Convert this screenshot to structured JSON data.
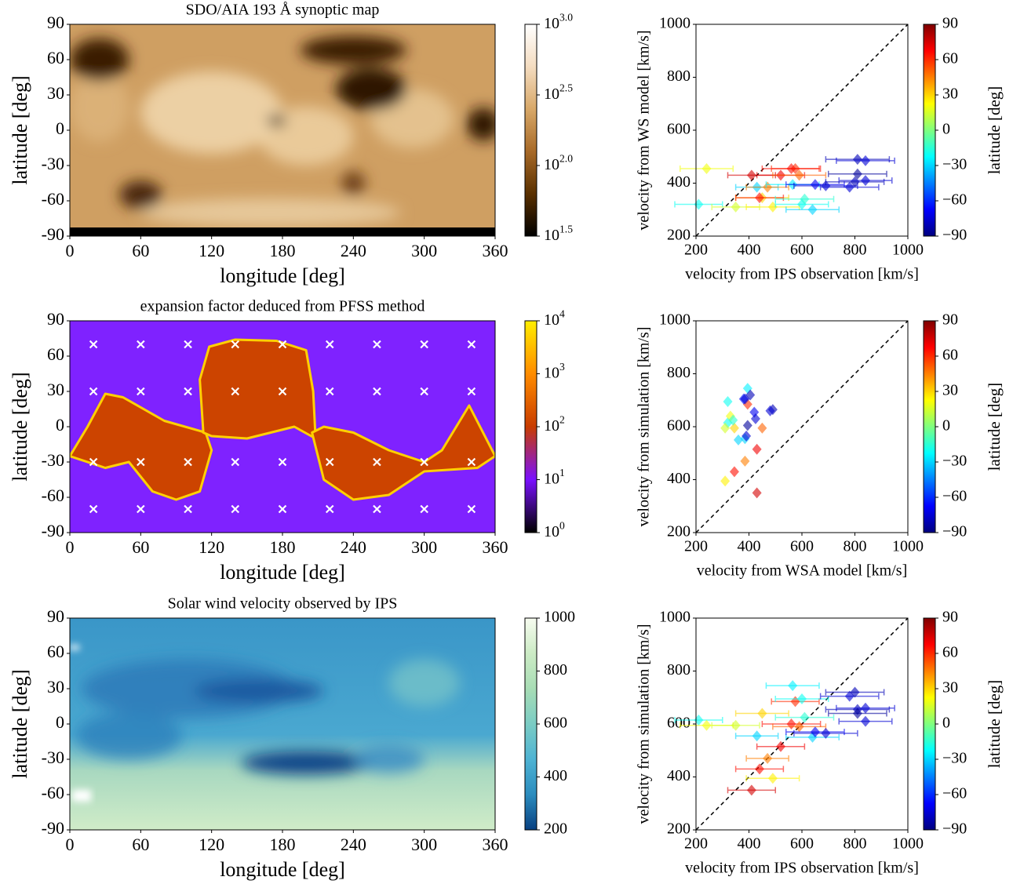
{
  "chart_data": [
    {
      "type": "heatmap",
      "title": "SDO/AIA 193 Å synoptic map",
      "xlabel": "longitude [deg]",
      "ylabel": "latitude [deg]",
      "xlim": [
        0,
        360
      ],
      "ylim": [
        -90,
        90
      ],
      "xticks": [
        0,
        60,
        120,
        180,
        240,
        300,
        360
      ],
      "yticks": [
        -90,
        -60,
        -30,
        0,
        30,
        60,
        90
      ],
      "colorbar": {
        "scale": "log",
        "lim": [
          1.5,
          3.0
        ],
        "ticks": [
          {
            "value": 1.5,
            "label": "10^1.5"
          },
          {
            "value": 2.0,
            "label": "10^2.0"
          },
          {
            "value": 2.5,
            "label": "10^2.5"
          },
          {
            "value": 3.0,
            "label": "10^3.0"
          }
        ],
        "colors": [
          "#000000",
          "#5a3000",
          "#a86a28",
          "#d8a868",
          "#f4dcc0",
          "#ffffff"
        ]
      }
    },
    {
      "type": "scatter",
      "xlabel": "velocity from IPS observation [km/s]",
      "ylabel": "velocity from WS model [km/s]",
      "xlim": [
        200,
        1000
      ],
      "ylim": [
        200,
        1000
      ],
      "xticks": [
        200,
        400,
        600,
        800,
        1000
      ],
      "yticks": [
        200,
        400,
        600,
        800,
        1000
      ],
      "diagonal": true,
      "x": [
        210,
        240,
        350,
        430,
        450,
        520,
        470,
        440,
        490,
        410,
        565,
        575,
        600,
        560,
        590,
        610,
        640,
        650,
        690,
        780,
        800,
        810,
        840,
        840,
        810
      ],
      "y": [
        320,
        455,
        310,
        385,
        345,
        430,
        385,
        345,
        310,
        430,
        395,
        455,
        320,
        455,
        430,
        340,
        300,
        395,
        390,
        385,
        405,
        490,
        485,
        410,
        435
      ],
      "xerr": [
        90,
        100,
        90,
        80,
        100,
        90,
        80,
        90,
        100,
        90,
        100,
        90,
        100,
        110,
        100,
        110,
        100,
        110,
        120,
        110,
        110,
        120,
        110,
        100,
        110
      ],
      "c": [
        -20,
        20,
        15,
        -30,
        30,
        70,
        45,
        65,
        25,
        75,
        -25,
        60,
        -20,
        65,
        50,
        -15,
        -30,
        -70,
        -75,
        -75,
        -80,
        -80,
        -75,
        -75,
        -85
      ],
      "colorbar": {
        "label": "latitude [deg]",
        "lim": [
          -90,
          90
        ],
        "ticks": [
          {
            "value": -90,
            "label": "−90"
          },
          {
            "value": -60,
            "label": "−60"
          },
          {
            "value": -30,
            "label": "−30"
          },
          0,
          30,
          60,
          90
        ],
        "colors": [
          "#00007f",
          "#0000ff",
          "#007fff",
          "#00ffff",
          "#7fff7f",
          "#ffff00",
          "#ff7f00",
          "#ff0000",
          "#7f0000"
        ]
      }
    },
    {
      "type": "heatmap",
      "title": "expansion factor deduced from PFSS method",
      "xlabel": "longitude [deg]",
      "ylabel": "latitude [deg]",
      "xlim": [
        0,
        360
      ],
      "ylim": [
        -90,
        90
      ],
      "xticks": [
        0,
        60,
        120,
        180,
        240,
        300,
        360
      ],
      "yticks": [
        -90,
        -60,
        -30,
        0,
        30,
        60,
        90
      ],
      "markers": {
        "color": "#ffffff",
        "x": [
          20,
          60,
          100,
          140,
          180,
          220,
          260,
          300,
          340,
          20,
          60,
          100,
          140,
          180,
          220,
          260,
          300,
          340,
          20,
          60,
          100,
          140,
          180,
          220,
          260,
          300,
          340,
          20,
          60,
          100,
          140,
          180,
          220,
          260,
          300,
          340
        ],
        "y": [
          70,
          70,
          70,
          70,
          70,
          70,
          70,
          70,
          70,
          30,
          30,
          30,
          30,
          30,
          30,
          30,
          30,
          30,
          -30,
          -30,
          -30,
          -30,
          -30,
          -30,
          -30,
          -30,
          -30,
          -70,
          -70,
          -70,
          -70,
          -70,
          -70,
          -70,
          -70,
          -70
        ]
      },
      "colorbar": {
        "scale": "log",
        "lim": [
          0,
          4
        ],
        "ticks": [
          {
            "value": 0,
            "label": "10^0"
          },
          {
            "value": 1,
            "label": "10^1"
          },
          {
            "value": 2,
            "label": "10^2"
          },
          {
            "value": 3,
            "label": "10^3"
          },
          {
            "value": 4,
            "label": "10^4"
          }
        ],
        "colors": [
          "#000000",
          "#7a10ff",
          "#c83c00",
          "#ff8c00",
          "#ffee00"
        ]
      }
    },
    {
      "type": "scatter",
      "xlabel": "velocity from WSA model [km/s]",
      "ylabel": "velocity from simulation [km/s]",
      "xlim": [
        200,
        1000
      ],
      "ylim": [
        200,
        1000
      ],
      "xticks": [
        200,
        400,
        600,
        800,
        1000
      ],
      "yticks": [
        200,
        400,
        600,
        800,
        1000
      ],
      "diagonal": true,
      "x": [
        320,
        330,
        310,
        385,
        345,
        430,
        385,
        345,
        310,
        430,
        395,
        395,
        320,
        380,
        450,
        340,
        360,
        420,
        390,
        385,
        405,
        490,
        480,
        425,
        395
      ],
      "y": [
        615,
        640,
        595,
        555,
        595,
        515,
        470,
        430,
        395,
        350,
        745,
        685,
        695,
        705,
        595,
        625,
        550,
        655,
        565,
        705,
        720,
        665,
        660,
        630,
        605
      ],
      "c": [
        -20,
        20,
        15,
        -30,
        30,
        70,
        45,
        65,
        25,
        75,
        -25,
        60,
        -20,
        -65,
        50,
        -15,
        -30,
        -70,
        -75,
        -75,
        -80,
        -80,
        -75,
        -75,
        -85
      ],
      "colorbar": {
        "label": "latitude [deg]",
        "lim": [
          -90,
          90
        ],
        "ticks": [
          {
            "value": -90,
            "label": "−90"
          },
          {
            "value": -60,
            "label": "−60"
          },
          {
            "value": -30,
            "label": "−30"
          },
          0,
          30,
          60,
          90
        ],
        "colors": [
          "#00007f",
          "#0000ff",
          "#007fff",
          "#00ffff",
          "#7fff7f",
          "#ffff00",
          "#ff7f00",
          "#ff0000",
          "#7f0000"
        ]
      }
    },
    {
      "type": "heatmap",
      "title": "Solar wind velocity observed by IPS",
      "xlabel": "longitude [deg]",
      "ylabel": "latitude [deg]",
      "xlim": [
        0,
        360
      ],
      "ylim": [
        -90,
        90
      ],
      "xticks": [
        0,
        60,
        120,
        180,
        240,
        300,
        360
      ],
      "yticks": [
        -90,
        -60,
        -30,
        0,
        30,
        60,
        90
      ],
      "colorbar": {
        "lim": [
          200,
          1000
        ],
        "ticks": [
          200,
          400,
          600,
          800,
          1000
        ],
        "colors": [
          "#084081",
          "#2b8cbe",
          "#4eb3d3",
          "#7bccc4",
          "#a8ddb5",
          "#ccebc5",
          "#f7fcf0"
        ]
      }
    },
    {
      "type": "scatter",
      "xlabel": "velocity from IPS observation [km/s]",
      "ylabel": "velocity from simulation [km/s]",
      "xlim": [
        200,
        1000
      ],
      "ylim": [
        200,
        1000
      ],
      "xticks": [
        200,
        400,
        600,
        800,
        1000
      ],
      "yticks": [
        200,
        400,
        600,
        800,
        1000
      ],
      "diagonal": true,
      "x": [
        210,
        240,
        350,
        430,
        450,
        520,
        470,
        440,
        490,
        410,
        565,
        575,
        600,
        560,
        590,
        610,
        640,
        650,
        690,
        780,
        800,
        810,
        840,
        840,
        810
      ],
      "y": [
        615,
        595,
        595,
        555,
        640,
        515,
        470,
        430,
        395,
        350,
        745,
        685,
        695,
        600,
        590,
        625,
        550,
        570,
        565,
        705,
        720,
        655,
        660,
        610,
        640
      ],
      "xerr": [
        90,
        100,
        90,
        80,
        100,
        90,
        80,
        90,
        100,
        90,
        100,
        90,
        100,
        110,
        100,
        110,
        100,
        110,
        120,
        110,
        110,
        120,
        110,
        100,
        110
      ],
      "c": [
        -20,
        20,
        15,
        -30,
        30,
        70,
        45,
        65,
        25,
        75,
        -25,
        60,
        -20,
        65,
        50,
        -15,
        -30,
        -70,
        -75,
        -75,
        -80,
        -80,
        -75,
        -75,
        -85
      ],
      "colorbar": {
        "label": "latitude [deg]",
        "lim": [
          -90,
          90
        ],
        "ticks": [
          {
            "value": -90,
            "label": "−90"
          },
          {
            "value": -60,
            "label": "−60"
          },
          {
            "value": -30,
            "label": "−30"
          },
          0,
          30,
          60,
          90
        ],
        "colors": [
          "#00007f",
          "#0000ff",
          "#007fff",
          "#00ffff",
          "#7fff7f",
          "#ffff00",
          "#ff7f00",
          "#ff0000",
          "#7f0000"
        ]
      }
    }
  ]
}
